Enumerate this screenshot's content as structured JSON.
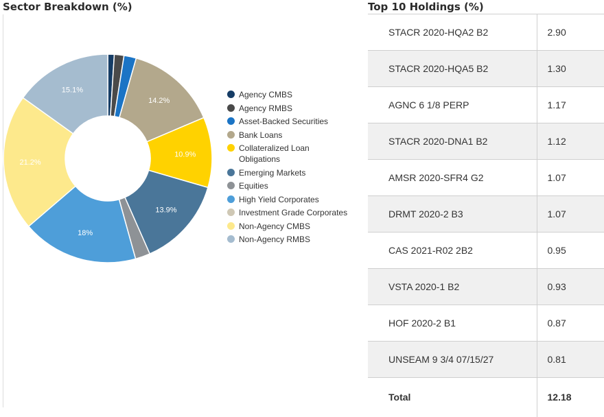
{
  "sector": {
    "title": "Sector Breakdown (%)"
  },
  "holdings": {
    "title": "Top 10 Holdings (%)",
    "rows": [
      {
        "name": "STACR 2020-HQA2 B2",
        "value": "2.90"
      },
      {
        "name": "STACR 2020-HQA5 B2",
        "value": "1.30"
      },
      {
        "name": "AGNC 6 1/8 PERP",
        "value": "1.17"
      },
      {
        "name": "STACR 2020-DNA1 B2",
        "value": "1.12"
      },
      {
        "name": "AMSR 2020-SFR4 G2",
        "value": "1.07"
      },
      {
        "name": "DRMT 2020-2 B3",
        "value": "1.07"
      },
      {
        "name": "CAS 2021-R02 2B2",
        "value": "0.95"
      },
      {
        "name": "VSTA 2020-1 B2",
        "value": "0.93"
      },
      {
        "name": "HOF 2020-2 B1",
        "value": "0.87"
      },
      {
        "name": "UNSEAM 9 3/4 07/15/27",
        "value": "0.81"
      }
    ],
    "total_label": "Total",
    "total_value": "12.18"
  },
  "chart_data": {
    "type": "pie",
    "title": "Sector Breakdown (%)",
    "legend_position": "right",
    "slices": [
      {
        "name": "Agency CMBS",
        "value": 1.0,
        "label": "",
        "color": "#163d66"
      },
      {
        "name": "Agency RMBS",
        "value": 1.5,
        "label": "",
        "color": "#4a4a4a"
      },
      {
        "name": "Asset-Backed Securities",
        "value": 1.9,
        "label": "",
        "color": "#1b74c5"
      },
      {
        "name": "Bank Loans",
        "value": 14.2,
        "label": "14.2%",
        "color": "#b3a88c"
      },
      {
        "name": "Collateralized Loan Obligations",
        "value": 10.9,
        "label": "10.9%",
        "color": "#ffd200"
      },
      {
        "name": "Emerging Markets",
        "value": 13.9,
        "label": "13.9%",
        "color": "#4a7699"
      },
      {
        "name": "Equities",
        "value": 2.3,
        "label": "",
        "color": "#8e9296"
      },
      {
        "name": "High Yield Corporates",
        "value": 18.0,
        "label": "18%",
        "color": "#4e9ed9"
      },
      {
        "name": "Investment Grade Corporates",
        "value": 0.0,
        "label": "",
        "color": "#cfc8b5"
      },
      {
        "name": "Non-Agency CMBS",
        "value": 21.2,
        "label": "21.2%",
        "color": "#fde98c"
      },
      {
        "name": "Non-Agency RMBS",
        "value": 15.1,
        "label": "15.1%",
        "color": "#a5bccf"
      }
    ]
  }
}
